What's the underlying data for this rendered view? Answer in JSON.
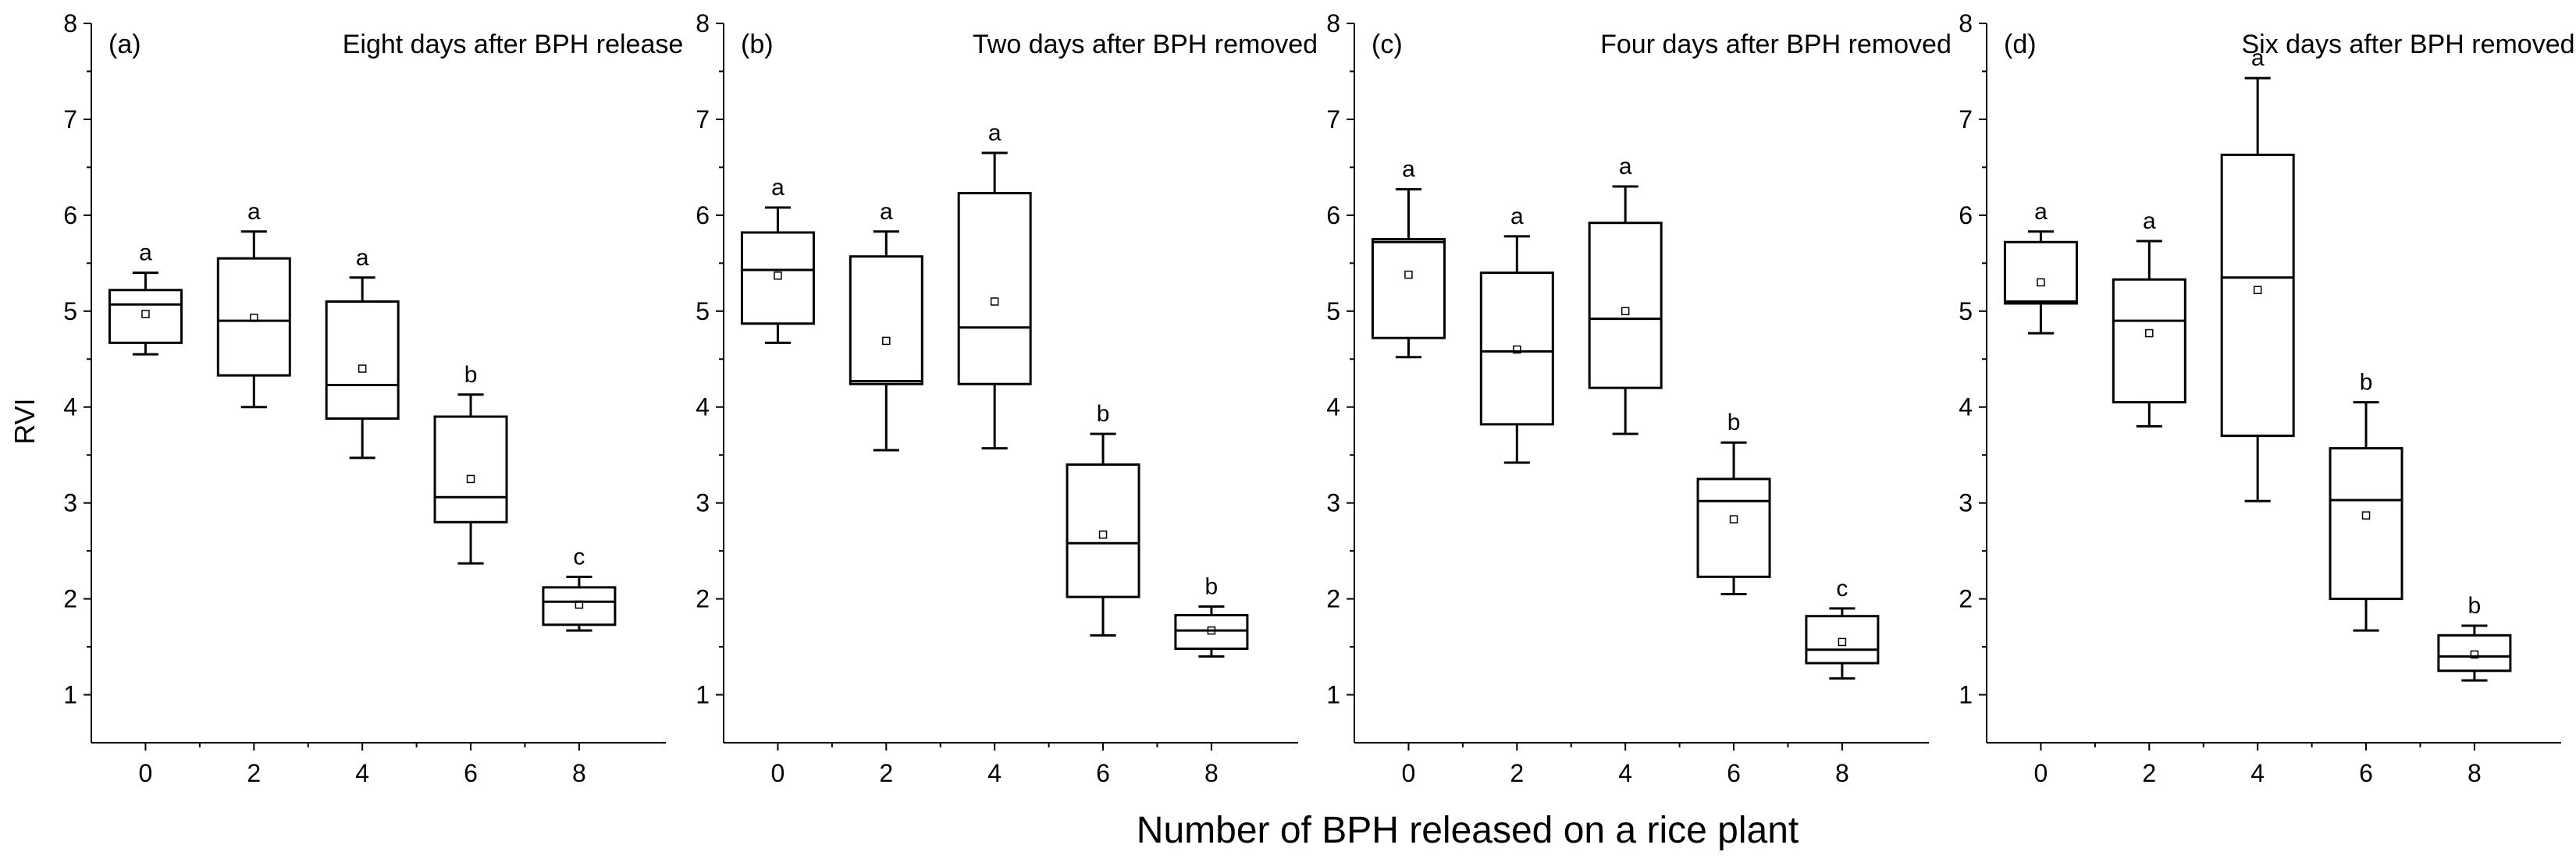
{
  "figure": {
    "ylabel": "RVI",
    "xlabel": "Number of BPH released on a rice plant"
  },
  "colors": {
    "ink": "#000000",
    "background": "#ffffff"
  },
  "chart_data": [
    {
      "type": "box",
      "panel_label": "(a)",
      "title": "Eight days after BPH release",
      "categories": [
        "0",
        "2",
        "4",
        "6",
        "8"
      ],
      "ylim": [
        0.5,
        8
      ],
      "yticks": [
        "1",
        "2",
        "3",
        "4",
        "5",
        "6",
        "7",
        "8"
      ],
      "boxes": [
        {
          "whisker_low": 4.55,
          "q1": 4.67,
          "median": 5.07,
          "q3": 5.22,
          "whisker_high": 5.4,
          "mean": 4.97,
          "letter": "a"
        },
        {
          "whisker_low": 4.0,
          "q1": 4.33,
          "median": 4.9,
          "q3": 5.55,
          "whisker_high": 5.83,
          "mean": 4.93,
          "letter": "a"
        },
        {
          "whisker_low": 3.47,
          "q1": 3.88,
          "median": 4.23,
          "q3": 5.1,
          "whisker_high": 5.35,
          "mean": 4.4,
          "letter": "a"
        },
        {
          "whisker_low": 2.37,
          "q1": 2.8,
          "median": 3.06,
          "q3": 3.9,
          "whisker_high": 4.13,
          "mean": 3.25,
          "letter": "b"
        },
        {
          "whisker_low": 1.67,
          "q1": 1.73,
          "median": 1.97,
          "q3": 2.12,
          "whisker_high": 2.23,
          "mean": 1.94,
          "letter": "c"
        }
      ]
    },
    {
      "type": "box",
      "panel_label": "(b)",
      "title": "Two days after BPH removed",
      "categories": [
        "0",
        "2",
        "4",
        "6",
        "8"
      ],
      "ylim": [
        0.5,
        8
      ],
      "yticks": [
        "1",
        "2",
        "3",
        "4",
        "5",
        "6",
        "7",
        "8"
      ],
      "boxes": [
        {
          "whisker_low": 4.67,
          "q1": 4.87,
          "median": 5.43,
          "q3": 5.82,
          "whisker_high": 6.08,
          "mean": 5.37,
          "letter": "a"
        },
        {
          "whisker_low": 3.55,
          "q1": 4.24,
          "median": 4.27,
          "q3": 5.57,
          "whisker_high": 5.83,
          "mean": 4.69,
          "letter": "a"
        },
        {
          "whisker_low": 3.57,
          "q1": 4.24,
          "median": 4.83,
          "q3": 6.23,
          "whisker_high": 6.65,
          "mean": 5.1,
          "letter": "a"
        },
        {
          "whisker_low": 1.62,
          "q1": 2.02,
          "median": 2.58,
          "q3": 3.4,
          "whisker_high": 3.72,
          "mean": 2.67,
          "letter": "b"
        },
        {
          "whisker_low": 1.4,
          "q1": 1.48,
          "median": 1.67,
          "q3": 1.83,
          "whisker_high": 1.92,
          "mean": 1.67,
          "letter": "b"
        }
      ]
    },
    {
      "type": "box",
      "panel_label": "(c)",
      "title": "Four days after BPH removed",
      "categories": [
        "0",
        "2",
        "4",
        "6",
        "8"
      ],
      "ylim": [
        0.5,
        8
      ],
      "yticks": [
        "1",
        "2",
        "3",
        "4",
        "5",
        "6",
        "7",
        "8"
      ],
      "boxes": [
        {
          "whisker_low": 4.52,
          "q1": 4.72,
          "median": 5.72,
          "q3": 5.75,
          "whisker_high": 6.27,
          "mean": 5.38,
          "letter": "a"
        },
        {
          "whisker_low": 3.42,
          "q1": 3.82,
          "median": 4.58,
          "q3": 5.4,
          "whisker_high": 5.78,
          "mean": 4.6,
          "letter": "a"
        },
        {
          "whisker_low": 3.72,
          "q1": 4.2,
          "median": 4.92,
          "q3": 5.92,
          "whisker_high": 6.3,
          "mean": 5.0,
          "letter": "a"
        },
        {
          "whisker_low": 2.05,
          "q1": 2.23,
          "median": 3.02,
          "q3": 3.25,
          "whisker_high": 3.63,
          "mean": 2.83,
          "letter": "b"
        },
        {
          "whisker_low": 1.17,
          "q1": 1.33,
          "median": 1.47,
          "q3": 1.82,
          "whisker_high": 1.9,
          "mean": 1.55,
          "letter": "c"
        }
      ]
    },
    {
      "type": "box",
      "panel_label": "(d)",
      "title": "Six days after BPH removed",
      "categories": [
        "0",
        "2",
        "4",
        "6",
        "8"
      ],
      "ylim": [
        0.5,
        8
      ],
      "yticks": [
        "1",
        "2",
        "3",
        "4",
        "5",
        "6",
        "7",
        "8"
      ],
      "boxes": [
        {
          "whisker_low": 4.77,
          "q1": 5.08,
          "median": 5.1,
          "q3": 5.72,
          "whisker_high": 5.83,
          "mean": 5.3,
          "letter": "a"
        },
        {
          "whisker_low": 3.8,
          "q1": 4.05,
          "median": 4.9,
          "q3": 5.33,
          "whisker_high": 5.73,
          "mean": 4.77,
          "letter": "a"
        },
        {
          "whisker_low": 3.02,
          "q1": 3.7,
          "median": 5.35,
          "q3": 6.63,
          "whisker_high": 7.43,
          "mean": 5.22,
          "letter": "a"
        },
        {
          "whisker_low": 1.67,
          "q1": 2.0,
          "median": 3.03,
          "q3": 3.57,
          "whisker_high": 4.05,
          "mean": 2.87,
          "letter": "b"
        },
        {
          "whisker_low": 1.15,
          "q1": 1.25,
          "median": 1.4,
          "q3": 1.62,
          "whisker_high": 1.72,
          "mean": 1.42,
          "letter": "b"
        }
      ]
    }
  ]
}
